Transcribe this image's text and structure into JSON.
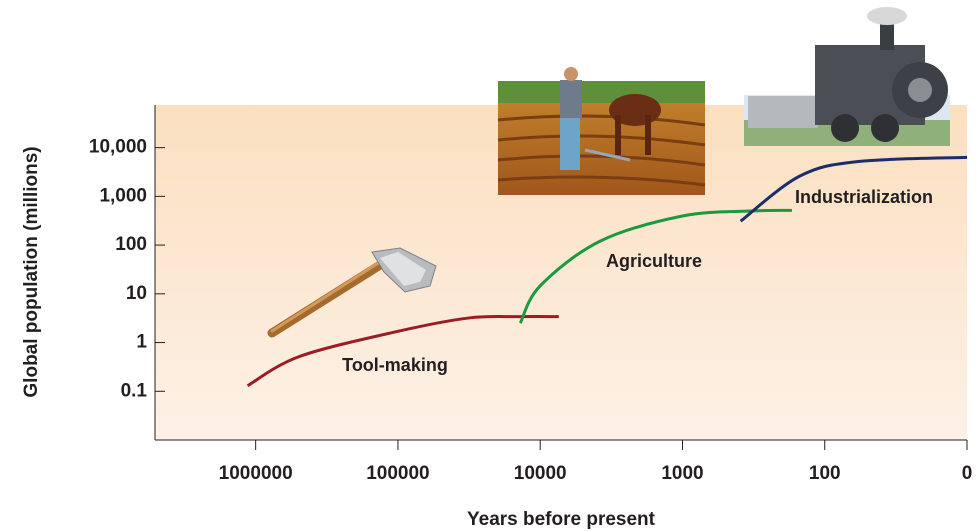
{
  "chart_data": {
    "type": "line",
    "xlabel": "Years before present",
    "ylabel": "Global population (millions)",
    "xscale": "log",
    "xreversed": true,
    "yscale": "log",
    "xlim": [
      5100000,
      10
    ],
    "ylim": [
      0.01,
      75000
    ],
    "xticks": [
      1000000,
      100000,
      10000,
      1000,
      100,
      {
        "value": 10,
        "label": "0"
      }
    ],
    "yticks": [
      {
        "value": 0.1,
        "label": "0.1"
      },
      1,
      10,
      100,
      {
        "value": 1000,
        "label": "1,000"
      },
      {
        "value": 10000,
        "label": "10,000"
      }
    ],
    "series": [
      {
        "name": "Tool-making",
        "color": "#9b1c24",
        "x": [
          1140000,
          490000,
          100000,
          31600,
          14000,
          7400
        ],
        "values": [
          0.13,
          0.52,
          1.7,
          3.2,
          3.4,
          3.4
        ]
      },
      {
        "name": "Agriculture",
        "color": "#1a9a3c",
        "x": [
          13800,
          10000,
          3800,
          1000,
          340,
          170
        ],
        "values": [
          2.5,
          14.6,
          120,
          395,
          500,
          515
        ]
      },
      {
        "name": "Industrialization",
        "color": "#1b2d6b",
        "x": [
          390,
          150,
          58,
          10
        ],
        "values": [
          310,
          2600,
          5200,
          6300
        ]
      }
    ]
  }
}
